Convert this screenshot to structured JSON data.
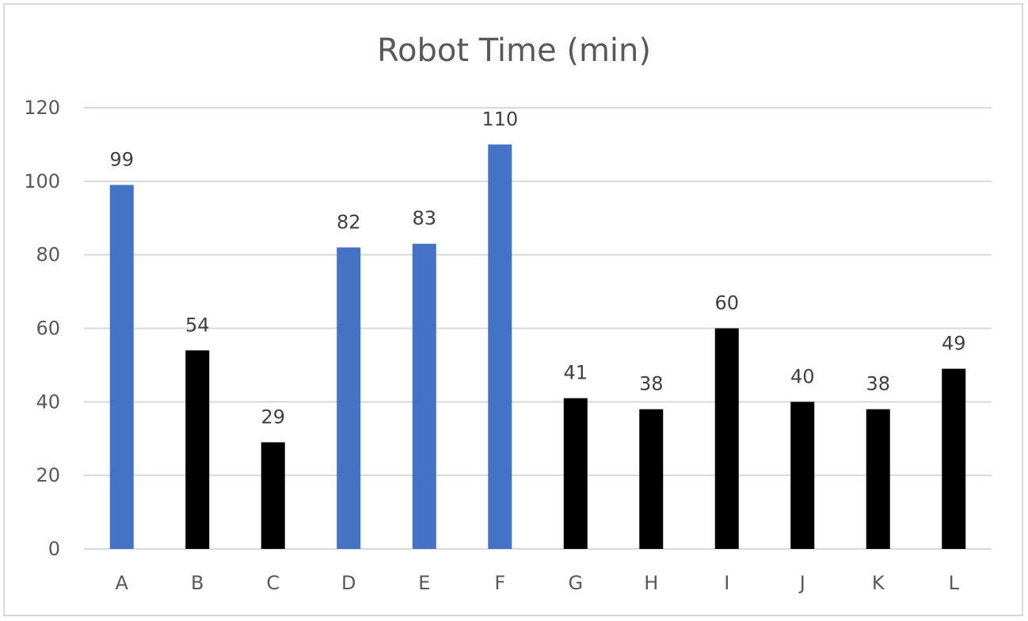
{
  "chart_data": {
    "type": "bar",
    "title": "Robot Time (min)",
    "xlabel": "",
    "ylabel": "",
    "categories": [
      "A",
      "B",
      "C",
      "D",
      "E",
      "F",
      "G",
      "H",
      "I",
      "J",
      "K",
      "L"
    ],
    "values": [
      99,
      54,
      29,
      82,
      83,
      110,
      41,
      38,
      60,
      40,
      38,
      49
    ],
    "data_labels": [
      "99",
      "54",
      "29",
      "82",
      "83",
      "110",
      "41",
      "38",
      "60",
      "40",
      "38",
      "49"
    ],
    "bar_colors": [
      "#4472c4",
      "#000000",
      "#000000",
      "#4472c4",
      "#4472c4",
      "#4472c4",
      "#000000",
      "#000000",
      "#000000",
      "#000000",
      "#000000",
      "#000000"
    ],
    "ylim": [
      0,
      120
    ],
    "yticks": [
      0,
      20,
      40,
      60,
      80,
      100,
      120
    ],
    "grid": true,
    "legend": "none"
  }
}
